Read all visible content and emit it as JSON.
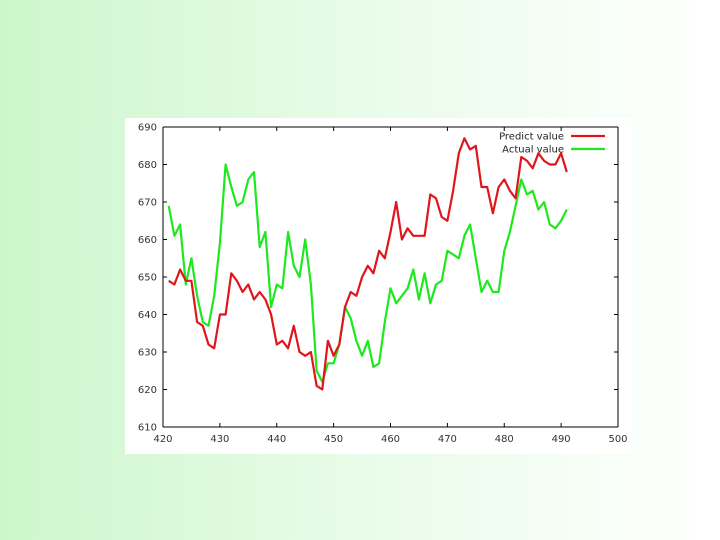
{
  "chart_data": {
    "type": "line",
    "title": "",
    "xlabel": "",
    "ylabel": "",
    "xlim": [
      420,
      500
    ],
    "ylim": [
      610,
      690
    ],
    "xticks": [
      420,
      430,
      440,
      450,
      460,
      470,
      480,
      490,
      500
    ],
    "yticks": [
      610,
      620,
      630,
      640,
      650,
      660,
      670,
      680,
      690
    ],
    "grid": false,
    "legend_position": "top-right",
    "series": [
      {
        "name": "Predict value",
        "color": "#e0161d",
        "x": [
          421,
          422,
          423,
          424,
          425,
          426,
          427,
          428,
          429,
          430,
          431,
          432,
          433,
          434,
          435,
          436,
          437,
          438,
          439,
          440,
          441,
          442,
          443,
          444,
          445,
          446,
          447,
          448,
          449,
          450,
          451,
          452,
          453,
          454,
          455,
          456,
          457,
          458,
          459,
          460,
          461,
          462,
          463,
          464,
          465,
          466,
          467,
          468,
          469,
          470,
          471,
          472,
          473,
          474,
          475,
          476,
          477,
          478,
          479,
          480,
          481,
          482,
          483,
          484,
          485,
          486,
          487,
          488,
          489,
          490,
          491
        ],
        "values": [
          649,
          648,
          652,
          649,
          649,
          638,
          637,
          632,
          631,
          640,
          640,
          651,
          649,
          646,
          648,
          644,
          646,
          644,
          640,
          632,
          633,
          631,
          637,
          630,
          629,
          630,
          621,
          620,
          633,
          629,
          632,
          642,
          646,
          645,
          650,
          653,
          651,
          657,
          655,
          662,
          670,
          660,
          663,
          661,
          661,
          661,
          672,
          671,
          666,
          665,
          673,
          683,
          687,
          684,
          685,
          674,
          674,
          667,
          674,
          676,
          673,
          671,
          682,
          681,
          679,
          683,
          681,
          680,
          680,
          683,
          678
        ]
      },
      {
        "name": "Actual value",
        "color": "#1ee81e",
        "x": [
          421,
          422,
          423,
          424,
          425,
          426,
          427,
          428,
          429,
          430,
          431,
          432,
          433,
          434,
          435,
          436,
          437,
          438,
          439,
          440,
          441,
          442,
          443,
          444,
          445,
          446,
          447,
          448,
          449,
          450,
          451,
          452,
          453,
          454,
          455,
          456,
          457,
          458,
          459,
          460,
          461,
          462,
          463,
          464,
          465,
          466,
          467,
          468,
          469,
          470,
          471,
          472,
          473,
          474,
          475,
          476,
          477,
          478,
          479,
          480,
          481,
          482,
          483,
          484,
          485,
          486,
          487,
          488,
          489,
          490,
          491
        ],
        "values": [
          669,
          661,
          664,
          648,
          655,
          645,
          638,
          637,
          645,
          659,
          680,
          674,
          669,
          670,
          676,
          678,
          658,
          662,
          642,
          648,
          647,
          662,
          653,
          650,
          660,
          648,
          625,
          622,
          627,
          627,
          632,
          642,
          639,
          633,
          629,
          633,
          626,
          627,
          638,
          647,
          643,
          645,
          647,
          652,
          644,
          651,
          643,
          648,
          649,
          657,
          656,
          655,
          661,
          664,
          655,
          646,
          649,
          646,
          646,
          657,
          662,
          669,
          676,
          672,
          673,
          668,
          670,
          664,
          663,
          665,
          668
        ]
      }
    ]
  }
}
